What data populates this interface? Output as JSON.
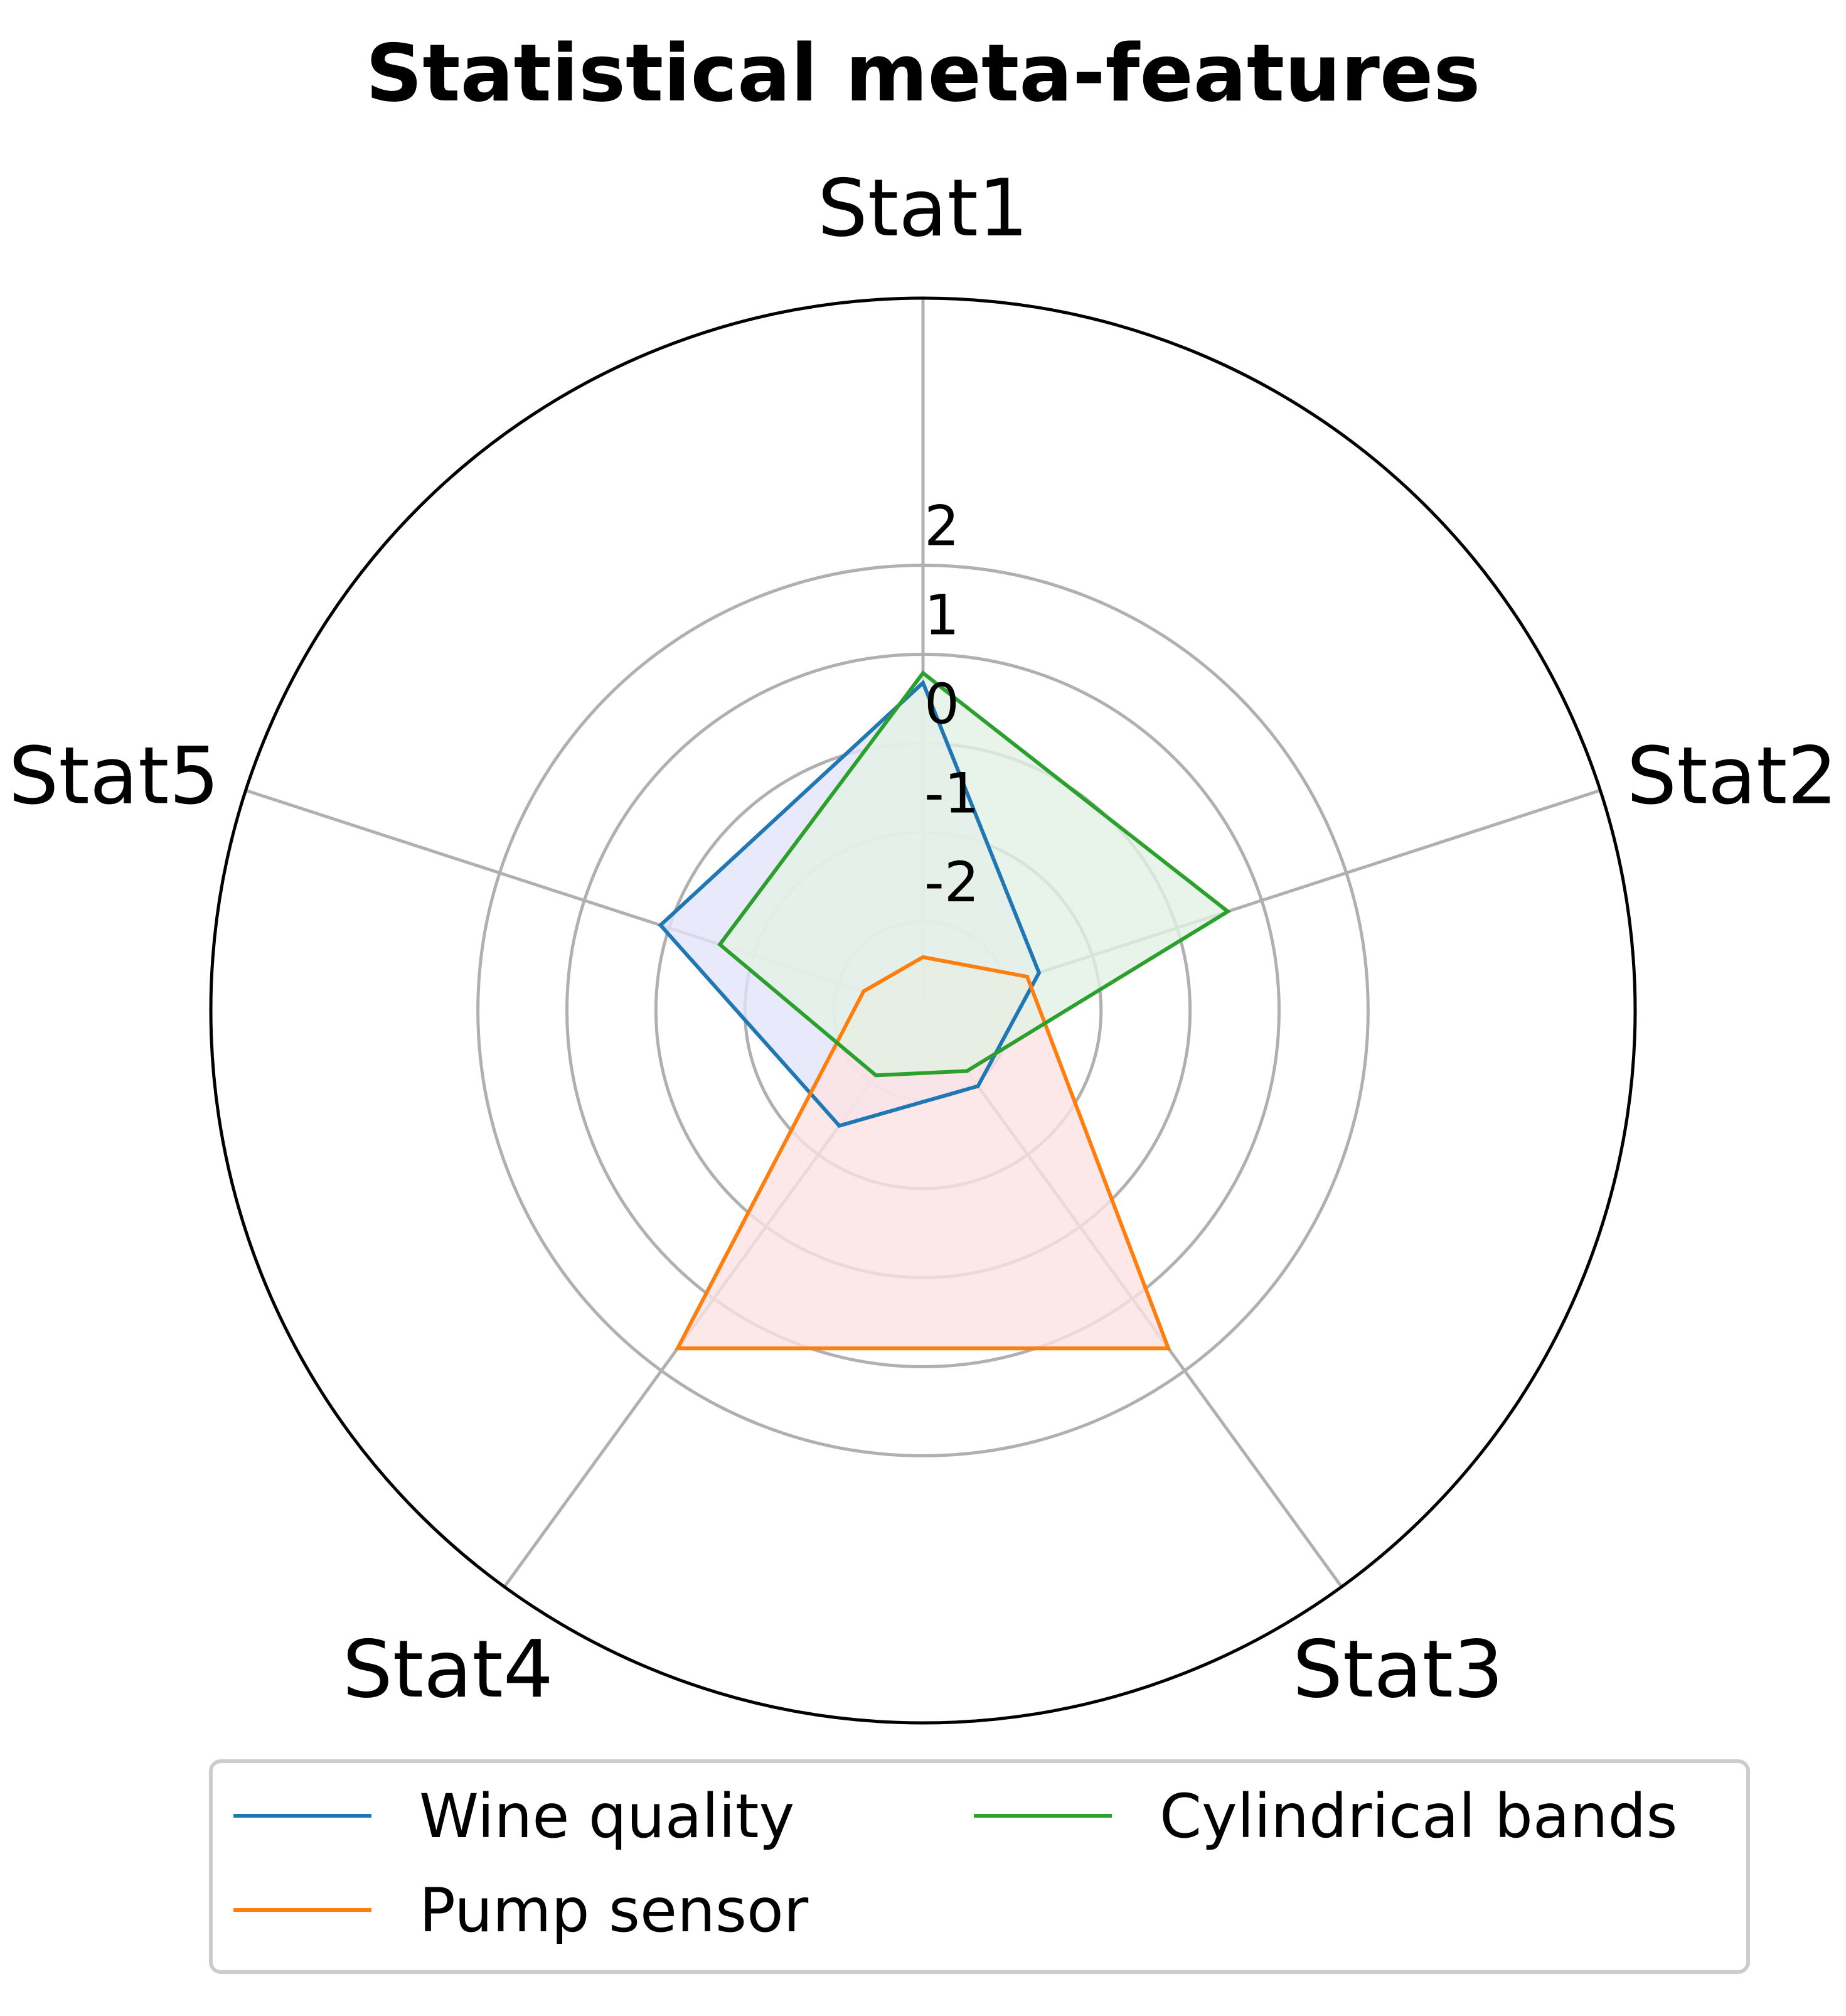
{
  "chart_data": {
    "type": "radar",
    "title": "Statistical meta-features",
    "axes": [
      "Stat1",
      "Stat2",
      "Stat3",
      "Stat4",
      "Stat5"
    ],
    "rlim": [
      -3,
      5
    ],
    "rticks": [
      -2,
      -1,
      0,
      1,
      2
    ],
    "rtick_labels": [
      "-2",
      "-1",
      "0",
      "1",
      "2"
    ],
    "grid": true,
    "legend_position": "bottom",
    "series": [
      {
        "name": "Wine quality",
        "color": "#1f77b4",
        "fill": "#e3e4fb",
        "values": [
          0.68,
          -1.63,
          -1.95,
          -1.4,
          0.1
        ]
      },
      {
        "name": "Pump sensor",
        "color": "#ff7f0e",
        "fill": "#fde2e4",
        "values": [
          -2.4,
          -1.77,
          1.69,
          1.69,
          -2.3
        ]
      },
      {
        "name": "Cylindrical bands",
        "color": "#2ca02c",
        "fill": "#e2f1e4",
        "values": [
          0.79,
          0.6,
          -2.16,
          -2.1,
          -0.6
        ]
      }
    ]
  }
}
